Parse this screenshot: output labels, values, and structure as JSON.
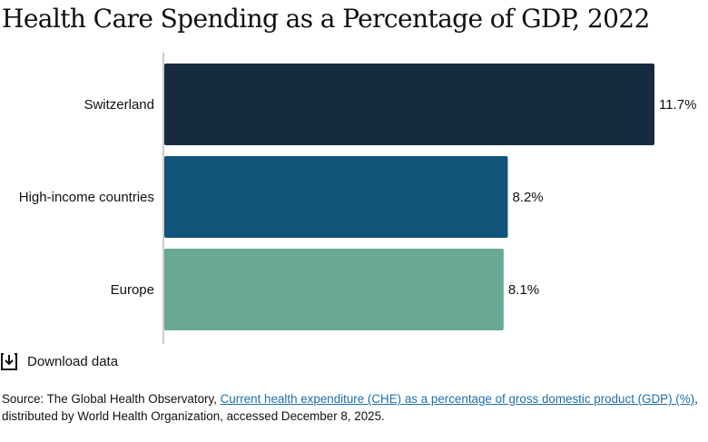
{
  "chart_data": {
    "type": "bar",
    "orientation": "horizontal",
    "title": "Health Care Spending as a Percentage of GDP, 2022",
    "categories": [
      "Switzerland",
      "High-income countries",
      "Europe"
    ],
    "values": [
      11.7,
      8.2,
      8.1
    ],
    "value_labels": [
      "11.7%",
      "8.2%",
      "8.1%"
    ],
    "colors": [
      "#172b40",
      "#11547a",
      "#68a895"
    ],
    "xlim": [
      0,
      11.7
    ],
    "grid": false
  },
  "download": {
    "label": "Download data",
    "icon": "download-icon"
  },
  "source": {
    "prefix": "Source: The Global Health Observatory, ",
    "link_text": "Current health expenditure (CHE) as a percentage of gross domestic product (GDP) (%)",
    "suffix": ", distributed by World Health Organization, accessed December 8, 2025."
  }
}
